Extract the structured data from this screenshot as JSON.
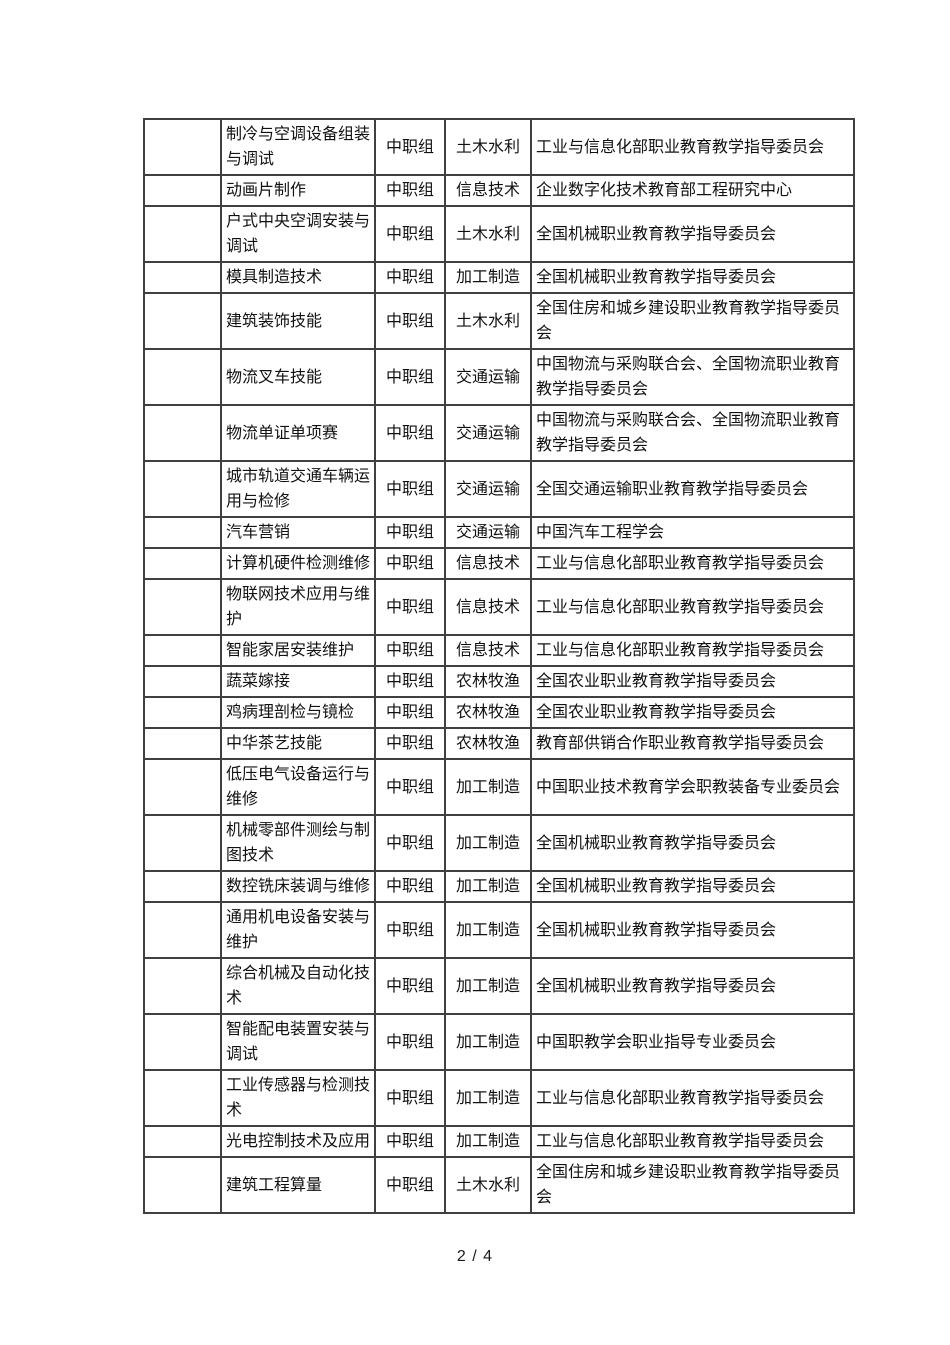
{
  "page": {
    "footer": "2 / 4"
  },
  "table": {
    "rows": [
      {
        "num": "",
        "name": "制冷与空调设备组装与调试",
        "group": "中职组",
        "category": "土木水利",
        "org": "工业与信息化部职业教育教学指导委员会"
      },
      {
        "num": "",
        "name": "动画片制作",
        "group": "中职组",
        "category": "信息技术",
        "org": "企业数字化技术教育部工程研究中心"
      },
      {
        "num": "",
        "name": "户式中央空调安装与调试",
        "group": "中职组",
        "category": "土木水利",
        "org": "全国机械职业教育教学指导委员会"
      },
      {
        "num": "",
        "name": "模具制造技术",
        "group": "中职组",
        "category": "加工制造",
        "org": "全国机械职业教育教学指导委员会"
      },
      {
        "num": "",
        "name": "建筑装饰技能",
        "group": "中职组",
        "category": "土木水利",
        "org": "全国住房和城乡建设职业教育教学指导委员会"
      },
      {
        "num": "",
        "name": "物流叉车技能",
        "group": "中职组",
        "category": "交通运输",
        "org": "中国物流与采购联合会、全国物流职业教育教学指导委员会"
      },
      {
        "num": "",
        "name": "物流单证单项赛",
        "group": "中职组",
        "category": "交通运输",
        "org": "中国物流与采购联合会、全国物流职业教育教学指导委员会"
      },
      {
        "num": "",
        "name": "城市轨道交通车辆运用与检修",
        "group": "中职组",
        "category": "交通运输",
        "org": "全国交通运输职业教育教学指导委员会"
      },
      {
        "num": "",
        "name": "汽车营销",
        "group": "中职组",
        "category": "交通运输",
        "org": "中国汽车工程学会"
      },
      {
        "num": "",
        "name": "计算机硬件检测维修",
        "group": "中职组",
        "category": "信息技术",
        "org": "工业与信息化部职业教育教学指导委员会"
      },
      {
        "num": "",
        "name": "物联网技术应用与维护",
        "group": "中职组",
        "category": "信息技术",
        "org": "工业与信息化部职业教育教学指导委员会"
      },
      {
        "num": "",
        "name": "智能家居安装维护",
        "group": "中职组",
        "category": "信息技术",
        "org": "工业与信息化部职业教育教学指导委员会"
      },
      {
        "num": "",
        "name": "蔬菜嫁接",
        "group": "中职组",
        "category": "农林牧渔",
        "org": "全国农业职业教育教学指导委员会"
      },
      {
        "num": "",
        "name": "鸡病理剖检与镜检",
        "group": "中职组",
        "category": "农林牧渔",
        "org": "全国农业职业教育教学指导委员会"
      },
      {
        "num": "",
        "name": "中华茶艺技能",
        "group": "中职组",
        "category": "农林牧渔",
        "org": "教育部供销合作职业教育教学指导委员会"
      },
      {
        "num": "",
        "name": "低压电气设备运行与维修",
        "group": "中职组",
        "category": "加工制造",
        "org": "中国职业技术教育学会职教装备专业委员会"
      },
      {
        "num": "",
        "name": "机械零部件测绘与制图技术",
        "group": "中职组",
        "category": "加工制造",
        "org": "全国机械职业教育教学指导委员会"
      },
      {
        "num": "",
        "name": "数控铣床装调与维修",
        "group": "中职组",
        "category": "加工制造",
        "org": "全国机械职业教育教学指导委员会"
      },
      {
        "num": "",
        "name": "通用机电设备安装与维护",
        "group": "中职组",
        "category": "加工制造",
        "org": "全国机械职业教育教学指导委员会"
      },
      {
        "num": "",
        "name": "综合机械及自动化技术",
        "group": "中职组",
        "category": "加工制造",
        "org": "全国机械职业教育教学指导委员会"
      },
      {
        "num": "",
        "name": "智能配电装置安装与调试",
        "group": "中职组",
        "category": "加工制造",
        "org": "中国职教学会职业指导专业委员会"
      },
      {
        "num": "",
        "name": "工业传感器与检测技术",
        "group": "中职组",
        "category": "加工制造",
        "org": "工业与信息化部职业教育教学指导委员会"
      },
      {
        "num": "",
        "name": "光电控制技术及应用",
        "group": "中职组",
        "category": "加工制造",
        "org": "工业与信息化部职业教育教学指导委员会"
      },
      {
        "num": "",
        "name": "建筑工程算量",
        "group": "中职组",
        "category": "土木水利",
        "org": "全国住房和城乡建设职业教育教学指导委员会"
      }
    ],
    "colors": {
      "border": "#404040",
      "text": "#111111",
      "background": "#ffffff"
    }
  }
}
